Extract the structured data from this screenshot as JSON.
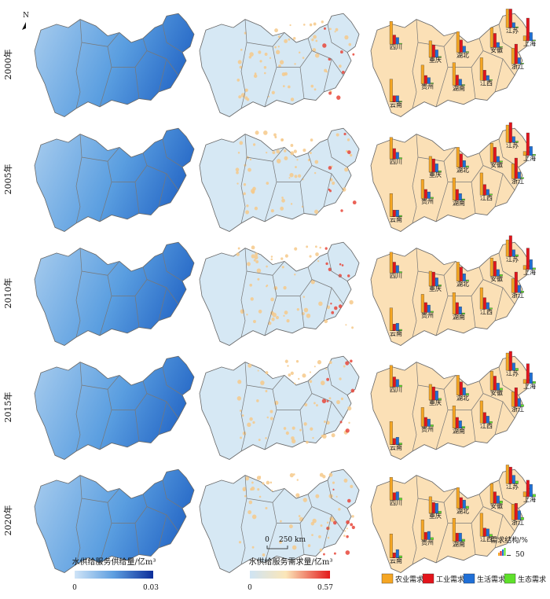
{
  "north": "N",
  "rows": [
    "2000年",
    "2005年",
    "2010年",
    "2015年",
    "2020年"
  ],
  "provinces": [
    "四川",
    "重庆",
    "贵州",
    "云南",
    "湖北",
    "湖南",
    "江西",
    "安徽",
    "江苏",
    "浙江",
    "上海"
  ],
  "structure": [
    [
      [
        55,
        22,
        16,
        2
      ],
      [
        40,
        30,
        18,
        2
      ],
      [
        45,
        20,
        15,
        2
      ],
      [
        55,
        15,
        15,
        2
      ],
      [
        50,
        30,
        15,
        2
      ],
      [
        55,
        25,
        15,
        2
      ],
      [
        55,
        25,
        12,
        2
      ],
      [
        48,
        34,
        12,
        2
      ],
      [
        45,
        45,
        12,
        2
      ],
      [
        38,
        48,
        15,
        2
      ],
      [
        12,
        55,
        20,
        2
      ]
    ],
    [
      [
        52,
        25,
        16,
        3
      ],
      [
        38,
        32,
        20,
        3
      ],
      [
        46,
        22,
        16,
        3
      ],
      [
        56,
        16,
        16,
        3
      ],
      [
        48,
        32,
        16,
        3
      ],
      [
        54,
        26,
        16,
        3
      ],
      [
        54,
        26,
        14,
        3
      ],
      [
        46,
        36,
        14,
        3
      ],
      [
        42,
        48,
        14,
        3
      ],
      [
        36,
        50,
        16,
        3
      ],
      [
        10,
        55,
        22,
        3
      ]
    ],
    [
      [
        50,
        26,
        18,
        3
      ],
      [
        36,
        34,
        20,
        3
      ],
      [
        44,
        24,
        18,
        3
      ],
      [
        55,
        16,
        18,
        3
      ],
      [
        46,
        34,
        18,
        3
      ],
      [
        52,
        28,
        18,
        3
      ],
      [
        52,
        28,
        16,
        3
      ],
      [
        44,
        36,
        16,
        4
      ],
      [
        40,
        50,
        16,
        4
      ],
      [
        34,
        50,
        18,
        4
      ],
      [
        10,
        52,
        24,
        4
      ]
    ],
    [
      [
        52,
        24,
        18,
        4
      ],
      [
        38,
        32,
        22,
        4
      ],
      [
        46,
        22,
        18,
        4
      ],
      [
        56,
        15,
        18,
        4
      ],
      [
        48,
        32,
        18,
        4
      ],
      [
        54,
        26,
        18,
        4
      ],
      [
        54,
        26,
        17,
        4
      ],
      [
        46,
        34,
        17,
        5
      ],
      [
        42,
        46,
        18,
        5
      ],
      [
        36,
        46,
        20,
        5
      ],
      [
        10,
        48,
        26,
        5
      ]
    ],
    [
      [
        55,
        18,
        20,
        5
      ],
      [
        40,
        26,
        24,
        5
      ],
      [
        48,
        18,
        20,
        5
      ],
      [
        58,
        12,
        20,
        5
      ],
      [
        50,
        26,
        20,
        5
      ],
      [
        56,
        20,
        20,
        5
      ],
      [
        56,
        20,
        18,
        5
      ],
      [
        48,
        28,
        18,
        6
      ],
      [
        45,
        40,
        20,
        6
      ],
      [
        38,
        40,
        22,
        6
      ],
      [
        12,
        40,
        30,
        6
      ]
    ]
  ],
  "supply_legend": {
    "title": "水供给服务供给量/亿m³",
    "min": 0,
    "max": 0.03
  },
  "demand_legend": {
    "title": "水供给服务需求量/亿m³",
    "min": 0,
    "max": 0.57
  },
  "scale_bar": {
    "start": 0,
    "label": "250 km"
  },
  "structure_legend": {
    "title": "需求结构/%",
    "reference": 50,
    "series": [
      {
        "name": "农业需求",
        "color": "#f5a623"
      },
      {
        "name": "工业需求",
        "color": "#e3141b"
      },
      {
        "name": "生活需求",
        "color": "#1f6fd6"
      },
      {
        "name": "生态需求",
        "color": "#5ee02a"
      }
    ]
  }
}
